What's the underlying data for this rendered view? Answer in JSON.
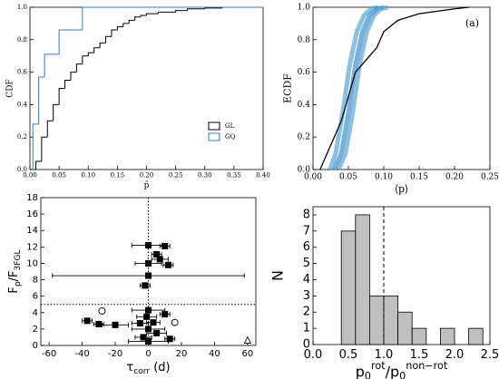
{
  "chart_data": [
    {
      "type": "step_cdf",
      "xlabel": "p̂",
      "ylabel": "CDF",
      "xlim": [
        0,
        0.4
      ],
      "ylim": [
        0,
        1
      ],
      "xticks": [
        {
          "value": 0,
          "label": "0.00"
        },
        0.05,
        {
          "value": 0.1,
          "label": "0.10"
        },
        0.15,
        {
          "value": 0.2,
          "label": "0.20"
        },
        0.25,
        {
          "value": 0.3,
          "label": "0.30"
        },
        0.35,
        {
          "value": 0.4,
          "label": "0.40"
        }
      ],
      "yticks": [
        {
          "value": 0,
          "label": "0.0"
        },
        0.2,
        0.4,
        0.6,
        0.8,
        {
          "value": 1,
          "label": "1.0"
        }
      ],
      "legend": "lower right",
      "series": [
        {
          "name": "GL",
          "color": "#000000",
          "x": [
            0.01,
            0.02,
            0.03,
            0.04,
            0.05,
            0.06,
            0.07,
            0.08,
            0.09,
            0.1,
            0.11,
            0.12,
            0.13,
            0.14,
            0.15,
            0.16,
            0.17,
            0.18,
            0.19,
            0.2,
            0.22,
            0.25,
            0.27,
            0.3,
            0.33
          ],
          "values": [
            0.05,
            0.2,
            0.3,
            0.4,
            0.5,
            0.55,
            0.6,
            0.65,
            0.7,
            0.72,
            0.75,
            0.78,
            0.82,
            0.86,
            0.88,
            0.9,
            0.92,
            0.94,
            0.95,
            0.96,
            0.97,
            0.98,
            0.99,
            0.995,
            1
          ]
        },
        {
          "name": "GQ",
          "color": "#3a78c0",
          "x": [
            0.005,
            0.015,
            0.025,
            0.05,
            0.09
          ],
          "values": [
            0.28,
            0.57,
            0.71,
            0.86,
            1
          ]
        }
      ]
    },
    {
      "type": "ecdf",
      "xlabel": "⟨p⟩",
      "ylabel": "ECDF",
      "annotation": "(a)",
      "xlim": [
        0,
        0.25
      ],
      "ylim": [
        0,
        1
      ],
      "xticks": [
        {
          "value": 0,
          "label": "0.00"
        },
        0.05,
        {
          "value": 0.1,
          "label": "0.10"
        },
        0.15,
        {
          "value": 0.2,
          "label": "0.20"
        },
        0.25
      ],
      "yticks": [
        {
          "value": 0,
          "label": "0.0"
        },
        0.2,
        0.4,
        0.6,
        0.8,
        {
          "value": 1,
          "label": "1.0"
        }
      ],
      "series": [
        {
          "color": "#5aa5d6",
          "x": [
            0.024,
            0.032,
            0.042,
            0.052,
            0.062,
            0.072,
            0.082,
            0.092
          ],
          "values": [
            0,
            0.1,
            0.35,
            0.65,
            0.85,
            0.95,
            0.99,
            1
          ]
        },
        {
          "color": "#3f92cc",
          "x": [
            0.03,
            0.04,
            0.05,
            0.06,
            0.07,
            0.08,
            0.09,
            0.1
          ],
          "values": [
            0,
            0.1,
            0.35,
            0.65,
            0.85,
            0.95,
            0.99,
            1
          ]
        },
        {
          "color": "#5aa5d6",
          "x": [
            0.036,
            0.046,
            0.056,
            0.066,
            0.076,
            0.086,
            0.096,
            0.106
          ],
          "values": [
            0,
            0.1,
            0.35,
            0.65,
            0.85,
            0.95,
            0.99,
            1
          ]
        },
        {
          "color": "#000000",
          "x": [
            0.01,
            0.02,
            0.03,
            0.04,
            0.05,
            0.06,
            0.07,
            0.08,
            0.09,
            0.1,
            0.12,
            0.15,
            0.2,
            0.22
          ],
          "values": [
            0,
            0.1,
            0.2,
            0.3,
            0.45,
            0.6,
            0.65,
            0.7,
            0.75,
            0.85,
            0.92,
            0.96,
            0.99,
            1
          ]
        }
      ]
    },
    {
      "type": "errorbar_scatter",
      "xlabel": [
        {
          "text": "τ"
        },
        {
          "text": "corr",
          "sub": true
        },
        {
          "text": " (d)"
        }
      ],
      "ylabel": [
        {
          "text": "F"
        },
        {
          "text": "p",
          "sub": true
        },
        {
          "text": "/F"
        },
        {
          "text": "3FGL",
          "sub": true
        }
      ],
      "xlim": [
        -65,
        65
      ],
      "ylim": [
        0,
        18
      ],
      "xticks": [
        -60,
        -40,
        -20,
        0,
        20,
        40,
        60
      ],
      "yticks": [
        0,
        2,
        4,
        6,
        8,
        10,
        12,
        14,
        16,
        18
      ],
      "vline": 0,
      "hline": 5,
      "x": [
        0,
        10,
        5,
        7,
        12,
        0,
        0,
        -2,
        0,
        -1,
        10,
        -37,
        -30,
        -20,
        -5,
        3,
        0,
        5,
        -3,
        13,
        0
      ],
      "values": [
        12.2,
        12.1,
        11.1,
        10.5,
        9.8,
        10,
        8.5,
        7.3,
        4.3,
        3.5,
        3.8,
        3,
        2.6,
        2.5,
        2.7,
        2.8,
        2,
        1.5,
        1,
        0.8,
        0.5
      ],
      "xerr": [
        10,
        3,
        3,
        5,
        3,
        8,
        58,
        3,
        10,
        6,
        3,
        3,
        3,
        8,
        5,
        4,
        10,
        6,
        5,
        3,
        12
      ],
      "open_x": [
        -28,
        16
      ],
      "open_values": [
        4.2,
        2.8
      ],
      "triangle_x": [
        60
      ],
      "triangle_values": [
        0.6
      ]
    },
    {
      "type": "histogram",
      "ylabel": "N",
      "xlabel": [
        {
          "text": "p"
        },
        {
          "text": "0",
          "sub": true
        },
        {
          "text": "rot",
          "sup": true
        },
        {
          "text": "/p"
        },
        {
          "text": "0",
          "sub": true
        },
        {
          "text": "non−rot",
          "sup": true
        }
      ],
      "xlim": [
        0,
        2.5
      ],
      "ylim": [
        0,
        8.5
      ],
      "xticks": [
        {
          "value": 0,
          "label": "0.0"
        },
        0.5,
        {
          "value": 1,
          "label": "1.0"
        },
        1.5,
        {
          "value": 2,
          "label": "2.0"
        },
        2.5
      ],
      "yticks": [
        0,
        1,
        2,
        3,
        4,
        5,
        6,
        7,
        8
      ],
      "vline": 1,
      "color": "#c0c0c0",
      "bins": [
        0.4,
        0.6,
        0.8,
        1.0,
        1.2,
        1.4,
        1.6,
        1.8,
        2.0,
        2.2,
        2.4
      ],
      "counts": [
        7,
        8,
        3,
        3,
        2,
        1,
        0,
        1,
        0,
        1
      ]
    }
  ]
}
